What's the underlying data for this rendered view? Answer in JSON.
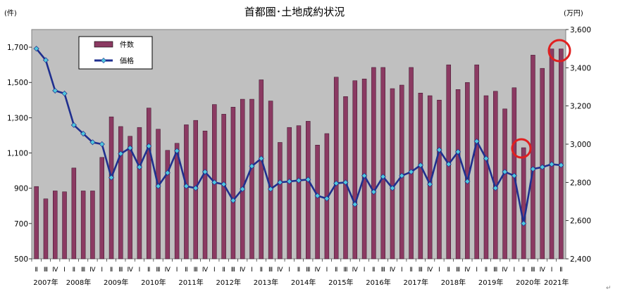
{
  "chart_data": {
    "type": "bar+line",
    "title": "首都圏･土地成約状況",
    "left_unit": "(件)",
    "right_unit": "(万円)",
    "left_axis": {
      "ylim": [
        500,
        1800
      ],
      "ticks": [
        "500",
        "700",
        "900",
        "1,100",
        "1,300",
        "1,500",
        "1,700"
      ]
    },
    "right_axis": {
      "ylim": [
        2400,
        3600
      ],
      "ticks": [
        "2,400",
        "2,600",
        "2,800",
        "3,000",
        "3,200",
        "3,400",
        "3,600"
      ]
    },
    "quarters": [
      "Ⅱ",
      "Ⅲ",
      "Ⅳ",
      "Ⅰ",
      "Ⅱ",
      "Ⅲ",
      "Ⅳ",
      "Ⅰ",
      "Ⅱ",
      "Ⅲ",
      "Ⅳ",
      "Ⅰ",
      "Ⅱ",
      "Ⅲ",
      "Ⅳ",
      "Ⅰ",
      "Ⅱ",
      "Ⅲ",
      "Ⅳ",
      "Ⅰ",
      "Ⅱ",
      "Ⅲ",
      "Ⅳ",
      "Ⅰ",
      "Ⅱ",
      "Ⅲ",
      "Ⅳ",
      "Ⅰ",
      "Ⅱ",
      "Ⅲ",
      "Ⅳ",
      "Ⅰ",
      "Ⅱ",
      "Ⅲ",
      "Ⅳ",
      "Ⅰ",
      "Ⅱ",
      "Ⅲ",
      "Ⅳ",
      "Ⅰ",
      "Ⅱ",
      "Ⅲ",
      "Ⅳ",
      "Ⅰ",
      "Ⅱ",
      "Ⅲ",
      "Ⅳ",
      "Ⅰ",
      "Ⅱ",
      "Ⅲ",
      "Ⅳ",
      "Ⅰ",
      "Ⅱ",
      "Ⅲ",
      "Ⅳ",
      "Ⅰ",
      "Ⅱ"
    ],
    "years": [
      "2007年",
      "2008年",
      "2009年",
      "2010年",
      "2011年",
      "2012年",
      "2013年",
      "2014年",
      "2015年",
      "2016年",
      "2017年",
      "2018年",
      "2019年",
      "2020年",
      "2021年"
    ],
    "year_start_index": [
      0,
      3,
      7,
      11,
      15,
      19,
      23,
      27,
      31,
      35,
      39,
      43,
      47,
      51,
      55
    ],
    "series": [
      {
        "name": "件数",
        "type": "bar",
        "axis": "left",
        "color": "#8b3a62",
        "values": [
          910,
          840,
          885,
          880,
          1015,
          885,
          885,
          1075,
          1305,
          1250,
          1195,
          1245,
          1355,
          1235,
          1115,
          1155,
          1260,
          1285,
          1225,
          1375,
          1320,
          1360,
          1405,
          1405,
          1515,
          1395,
          1160,
          1245,
          1255,
          1280,
          1145,
          1210,
          1530,
          1420,
          1510,
          1520,
          1585,
          1585,
          1465,
          1485,
          1585,
          1440,
          1425,
          1400,
          1600,
          1460,
          1500,
          1600,
          1425,
          1450,
          1350,
          1470,
          1130,
          1655,
          1580,
          1690,
          1690
        ]
      },
      {
        "name": "価格",
        "type": "line",
        "axis": "right",
        "color": "#1f2f8f",
        "marker_color": "#4fc8dc",
        "values": [
          3500,
          3440,
          3280,
          3265,
          3100,
          3055,
          3010,
          3000,
          2825,
          2950,
          2980,
          2880,
          2990,
          2780,
          2850,
          2965,
          2780,
          2770,
          2855,
          2800,
          2790,
          2705,
          2765,
          2885,
          2925,
          2765,
          2800,
          2805,
          2810,
          2815,
          2730,
          2715,
          2795,
          2800,
          2685,
          2835,
          2750,
          2830,
          2770,
          2835,
          2855,
          2890,
          2790,
          2970,
          2895,
          2960,
          2805,
          3015,
          2925,
          2770,
          2855,
          2835,
          2585,
          2870,
          2880,
          2895,
          2890
        ]
      }
    ],
    "grid": false,
    "legend": "top-left",
    "annotations": [
      {
        "type": "circle",
        "color": "#e02020"
      },
      {
        "type": "circle",
        "color": "#e02020"
      }
    ]
  }
}
